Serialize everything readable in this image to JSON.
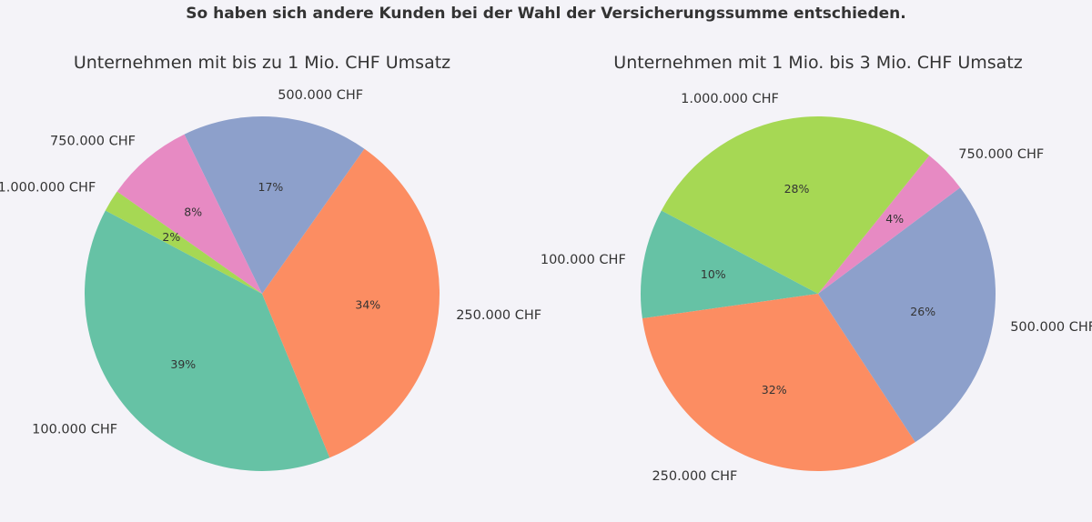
{
  "suptitle": "So haben sich andere Kunden bei der Wahl der Versicherungssumme entschieden.",
  "colors": {
    "100.000 CHF": "#66c2a5",
    "250.000 CHF": "#fc8d62",
    "500.000 CHF": "#8da0cb",
    "750.000 CHF": "#e78ac3",
    "1.000.000 CHF": "#a6d854"
  },
  "chart_data": [
    {
      "type": "pie",
      "title": "Unternehmen mit bis zu 1 Mio. CHF Umsatz",
      "categories": [
        "100.000 CHF",
        "250.000 CHF",
        "500.000 CHF",
        "750.000 CHF",
        "1.000.000 CHF"
      ],
      "values": [
        39,
        34,
        17,
        8,
        2
      ],
      "pct_labels": [
        "39%",
        "34%",
        "17%",
        "8%",
        "2%"
      ]
    },
    {
      "type": "pie",
      "title": "Unternehmen mit 1 Mio. bis 3 Mio. CHF Umsatz",
      "categories": [
        "100.000 CHF",
        "250.000 CHF",
        "500.000 CHF",
        "750.000 CHF",
        "1.000.000 CHF"
      ],
      "values": [
        10,
        32,
        26,
        4,
        28
      ],
      "pct_labels": [
        "10%",
        "32%",
        "26%",
        "4%",
        "28%"
      ]
    }
  ]
}
